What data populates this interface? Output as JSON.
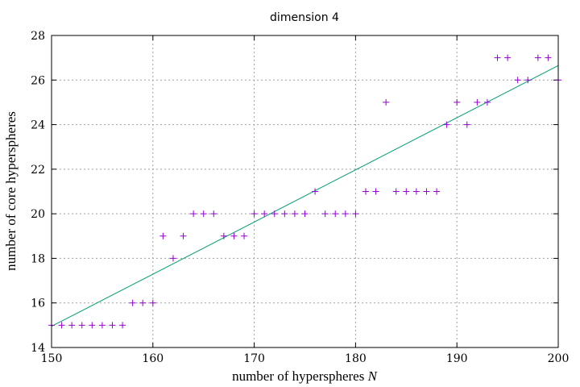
{
  "chart_data": {
    "type": "scatter",
    "title": "dimension 4",
    "xlabel": "number of hyperspheres",
    "xlabel_var": "N",
    "ylabel": "number of core hyperspheres",
    "xlim": [
      150,
      200
    ],
    "ylim": [
      14,
      28
    ],
    "xticks": [
      150,
      160,
      170,
      180,
      190,
      200
    ],
    "yticks": [
      14,
      16,
      18,
      20,
      22,
      24,
      26,
      28
    ],
    "grid": true,
    "legend": "none",
    "colors": {
      "points": "#9400d3",
      "fit": "#009e73"
    },
    "series": [
      {
        "kind": "points",
        "marker": "+",
        "x": [
          150,
          151,
          152,
          153,
          154,
          155,
          156,
          157,
          158,
          159,
          160,
          161,
          162,
          163,
          164,
          165,
          166,
          167,
          168,
          169,
          170,
          171,
          172,
          173,
          174,
          175,
          176,
          177,
          178,
          179,
          180,
          181,
          182,
          183,
          184,
          185,
          186,
          187,
          188,
          189,
          190,
          191,
          192,
          193,
          194,
          195,
          196,
          197,
          198,
          199,
          200
        ],
        "y": [
          15,
          15,
          15,
          15,
          15,
          15,
          15,
          15,
          16,
          16,
          16,
          19,
          18,
          19,
          20,
          20,
          20,
          19,
          19,
          19,
          20,
          20,
          20,
          20,
          20,
          20,
          21,
          20,
          20,
          20,
          20,
          21,
          21,
          25,
          21,
          21,
          21,
          21,
          21,
          24,
          25,
          24,
          25,
          25,
          27,
          27,
          26,
          26,
          27,
          27,
          26
        ]
      },
      {
        "kind": "line",
        "x": [
          150,
          200
        ],
        "y": [
          14.95,
          26.65
        ]
      }
    ]
  }
}
